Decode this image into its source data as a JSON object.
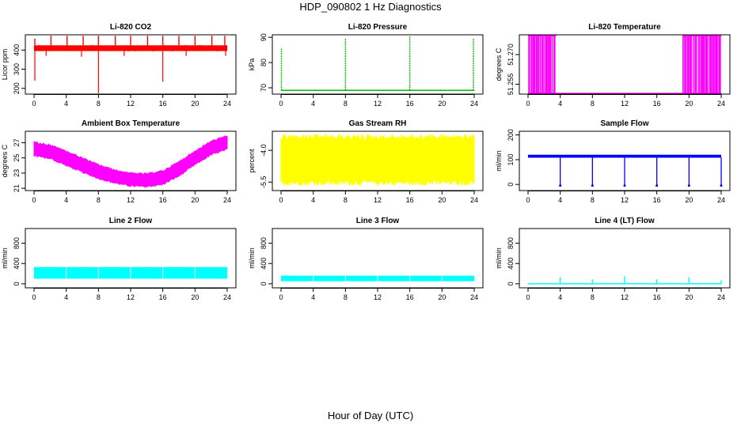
{
  "figure": {
    "title": "HDP_090802  1 Hz Diagnostics",
    "xlabel": "Hour of Day (UTC)"
  },
  "chart_data": [
    {
      "type": "line",
      "title": "Li-820 CO2",
      "ylabel": "Licor ppm",
      "color": "#ff0000",
      "xlim": [
        0,
        24
      ],
      "xticks": [
        0,
        4,
        8,
        12,
        16,
        20,
        24
      ],
      "ylim": [
        170,
        480
      ],
      "yticks": [
        200,
        300,
        400
      ],
      "yticklabels": [
        "200",
        "300",
        "400"
      ],
      "series": [
        {
          "name": "CO2",
          "style": "band_with_spikes",
          "base_low": 395,
          "base_high": 425,
          "spikes_up": [
            {
              "x": 0.1,
              "y": 460
            },
            {
              "x": 2.1,
              "y": 475
            },
            {
              "x": 4.1,
              "y": 475
            },
            {
              "x": 6.1,
              "y": 475
            },
            {
              "x": 8.0,
              "y": 475
            },
            {
              "x": 10.1,
              "y": 475
            },
            {
              "x": 12.0,
              "y": 475
            },
            {
              "x": 14.1,
              "y": 475
            },
            {
              "x": 16.0,
              "y": 475
            },
            {
              "x": 18.0,
              "y": 475
            },
            {
              "x": 20.0,
              "y": 475
            },
            {
              "x": 22.1,
              "y": 475
            },
            {
              "x": 23.7,
              "y": 475
            }
          ],
          "spikes_down": [
            {
              "x": 0.1,
              "y": 240
            },
            {
              "x": 1.5,
              "y": 370
            },
            {
              "x": 5.9,
              "y": 365
            },
            {
              "x": 8.0,
              "y": 175
            },
            {
              "x": 11.2,
              "y": 370
            },
            {
              "x": 16.0,
              "y": 235
            },
            {
              "x": 18.9,
              "y": 370
            },
            {
              "x": 23.8,
              "y": 370
            }
          ]
        }
      ]
    },
    {
      "type": "line",
      "title": "Li-820 Pressure",
      "ylabel": "kPa",
      "color": "#00bb00",
      "xlim": [
        0,
        24
      ],
      "xticks": [
        0,
        4,
        8,
        12,
        16,
        20,
        24
      ],
      "ylim": [
        67.5,
        91
      ],
      "yticks": [
        70,
        80,
        90
      ],
      "yticklabels": [
        "70",
        "80",
        "90"
      ],
      "series": [
        {
          "name": "Pressure",
          "style": "flat_with_spikes",
          "baseline": 69,
          "spikes": [
            {
              "x": 0.05,
              "y": 85.5
            },
            {
              "x": 8.0,
              "y": 89.5
            },
            {
              "x": 16.0,
              "y": 90.5
            },
            {
              "x": 23.9,
              "y": 89.5
            }
          ]
        }
      ]
    },
    {
      "type": "line",
      "title": "Li-820 Temperature",
      "ylabel": "degrees C",
      "color": "#ff00ff",
      "xlim": [
        0,
        24
      ],
      "xticks": [
        0,
        4,
        8,
        12,
        16,
        20,
        24
      ],
      "ylim": [
        51.25,
        51.28
      ],
      "yticks": [
        51.255,
        51.27
      ],
      "yticklabels": [
        "51.255",
        "51.270"
      ],
      "series": [
        {
          "name": "Temperature",
          "style": "toggle",
          "low": 51.25,
          "high": 51.28,
          "dense_segments": [
            [
              0.0,
              3.5
            ],
            [
              19.2,
              24.0
            ]
          ]
        }
      ]
    },
    {
      "type": "line",
      "title": "Ambient Box Temperature",
      "ylabel": "degrees C",
      "color": "#ff00ff",
      "xlim": [
        0,
        24
      ],
      "xticks": [
        0,
        4,
        8,
        12,
        16,
        20,
        24
      ],
      "ylim": [
        20.7,
        28.5
      ],
      "yticks": [
        21,
        23,
        25,
        27
      ],
      "yticklabels": [
        "21",
        "23",
        "25",
        "27"
      ],
      "series": [
        {
          "name": "Box temperature (band)",
          "style": "band",
          "x": [
            0,
            2,
            4,
            6,
            8,
            10,
            12,
            14,
            16,
            18,
            20,
            22,
            24
          ],
          "low": [
            25.2,
            24.8,
            23.9,
            23.0,
            22.2,
            21.6,
            21.2,
            21.1,
            21.4,
            22.5,
            24.0,
            25.3,
            26.0
          ],
          "high": [
            27.2,
            26.8,
            26.0,
            25.1,
            24.2,
            23.5,
            23.1,
            23.0,
            23.4,
            24.6,
            26.0,
            27.3,
            28.0
          ]
        }
      ]
    },
    {
      "type": "line",
      "title": "Gas Stream RH",
      "ylabel": "percent",
      "color": "#ffff00",
      "xlim": [
        0,
        24
      ],
      "xticks": [
        0,
        4,
        8,
        12,
        16,
        20,
        24
      ],
      "ylim": [
        -5.9,
        -3.1
      ],
      "yticks": [
        -5.5,
        -4.0
      ],
      "yticklabels": [
        "-5.5",
        "-4.0"
      ],
      "series": [
        {
          "name": "RH (band)",
          "style": "band",
          "x": [
            0,
            24
          ],
          "low": [
            -5.65,
            -5.65
          ],
          "high": [
            -3.25,
            -3.25
          ]
        }
      ]
    },
    {
      "type": "line",
      "title": "Sample Flow",
      "ylabel": "ml/min",
      "color": "#0000ff",
      "xlim": [
        0,
        24
      ],
      "xticks": [
        0,
        4,
        8,
        12,
        16,
        20,
        24
      ],
      "ylim": [
        -25,
        215
      ],
      "yticks": [
        0,
        100,
        200
      ],
      "yticklabels": [
        "0",
        "100",
        "200"
      ],
      "series": [
        {
          "name": "Sample flow",
          "style": "flat_with_dips",
          "base_low": 108,
          "base_high": 120,
          "dips": [
            {
              "x": 4.0,
              "y": -5
            },
            {
              "x": 8.0,
              "y": -5
            },
            {
              "x": 12.0,
              "y": -5
            },
            {
              "x": 16.0,
              "y": -5
            },
            {
              "x": 20.0,
              "y": -5
            },
            {
              "x": 24.0,
              "y": -5
            }
          ]
        }
      ]
    },
    {
      "type": "line",
      "title": "Line 2 Flow",
      "ylabel": "ml/min",
      "color": "#00ffff",
      "xlim": [
        0,
        24
      ],
      "xticks": [
        0,
        4,
        8,
        12,
        16,
        20,
        24
      ],
      "ylim": [
        -80,
        1090
      ],
      "yticks": [
        0,
        400,
        800
      ],
      "yticklabels": [
        "0",
        "400",
        "800"
      ],
      "series": [
        {
          "name": "Line 2 flow (band)",
          "style": "band_with_gaps",
          "low": 100,
          "high": 330,
          "gaps": [
            4.0,
            8.0,
            12.0,
            16.0,
            20.0
          ]
        }
      ]
    },
    {
      "type": "line",
      "title": "Line 3 Flow",
      "ylabel": "ml/min",
      "color": "#00ffff",
      "xlim": [
        0,
        24
      ],
      "xticks": [
        0,
        4,
        8,
        12,
        16,
        20,
        24
      ],
      "ylim": [
        -80,
        1090
      ],
      "yticks": [
        0,
        400,
        800
      ],
      "yticklabels": [
        "0",
        "400",
        "800"
      ],
      "series": [
        {
          "name": "Line 3 flow (band)",
          "style": "band_with_gaps",
          "low": 50,
          "high": 160,
          "gaps": [
            4.0,
            8.0,
            12.0,
            16.0,
            20.0
          ]
        }
      ]
    },
    {
      "type": "line",
      "title": "Line 4 (LT) Flow",
      "ylabel": "ml/min",
      "color": "#00ffff",
      "xlim": [
        0,
        24
      ],
      "xticks": [
        0,
        4,
        8,
        12,
        16,
        20,
        24
      ],
      "ylim": [
        -80,
        1090
      ],
      "yticks": [
        0,
        400,
        800
      ],
      "yticklabels": [
        "0",
        "400",
        "800"
      ],
      "series": [
        {
          "name": "Line 4 flow",
          "style": "flat_with_spikes",
          "baseline": 0,
          "spikes": [
            {
              "x": 4.0,
              "y": 130
            },
            {
              "x": 8.0,
              "y": 90
            },
            {
              "x": 12.0,
              "y": 150
            },
            {
              "x": 16.0,
              "y": 90
            },
            {
              "x": 20.0,
              "y": 130
            },
            {
              "x": 24.0,
              "y": 70
            }
          ]
        }
      ]
    }
  ]
}
